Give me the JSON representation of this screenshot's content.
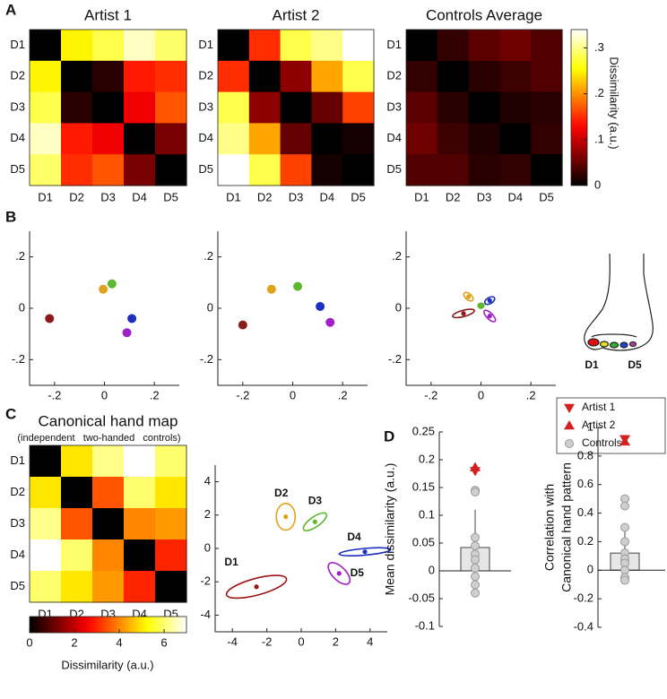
{
  "panel_labels": [
    "A",
    "B",
    "C",
    "D"
  ],
  "foot": {
    "labels": [
      "D1",
      "D5"
    ]
  },
  "chart_data": [
    {
      "type": "heatmap",
      "title": "Artist 1",
      "categories": [
        "D1",
        "D2",
        "D3",
        "D4",
        "D5"
      ],
      "colormap": "hot",
      "clim": [
        0,
        0.34
      ],
      "values": [
        [
          0,
          0.25,
          0.28,
          0.32,
          0.29
        ],
        [
          0.25,
          0,
          0.02,
          0.14,
          0.15
        ],
        [
          0.28,
          0.02,
          0,
          0.12,
          0.17
        ],
        [
          0.32,
          0.14,
          0.12,
          0,
          0.06
        ],
        [
          0.29,
          0.15,
          0.17,
          0.06,
          0
        ]
      ]
    },
    {
      "type": "heatmap",
      "title": "Artist 2",
      "categories": [
        "D1",
        "D2",
        "D3",
        "D4",
        "D5"
      ],
      "colormap": "hot",
      "clim": [
        0,
        0.34
      ],
      "values": [
        [
          0,
          0.15,
          0.28,
          0.3,
          0.34
        ],
        [
          0.15,
          0,
          0.07,
          0.21,
          0.28
        ],
        [
          0.28,
          0.07,
          0,
          0.05,
          0.16
        ],
        [
          0.3,
          0.21,
          0.05,
          0,
          0.01
        ],
        [
          0.34,
          0.28,
          0.16,
          0.01,
          0
        ]
      ]
    },
    {
      "type": "heatmap",
      "title": "Controls Average",
      "categories": [
        "D1",
        "D2",
        "D3",
        "D4",
        "D5"
      ],
      "colormap": "hot",
      "clim": [
        0,
        0.34
      ],
      "values": [
        [
          0,
          0.025,
          0.045,
          0.055,
          0.04
        ],
        [
          0.025,
          0,
          0.02,
          0.03,
          0.04
        ],
        [
          0.045,
          0.02,
          0,
          0.015,
          0.02
        ],
        [
          0.055,
          0.03,
          0.015,
          0,
          0.025
        ],
        [
          0.04,
          0.04,
          0.02,
          0.025,
          0
        ]
      ],
      "colorbar": {
        "label": "Dissimilarity (a.u.)",
        "ticks": [
          0,
          {
            "value": 0.1,
            "label": ".1"
          },
          {
            "value": 0.2,
            "label": ".2"
          },
          {
            "value": 0.3,
            "label": ".3"
          }
        ]
      }
    },
    {
      "type": "scatter",
      "x": [
        -0.22,
        -0.005,
        0.03,
        0.11,
        0.09
      ],
      "y": [
        -0.04,
        0.074,
        0.095,
        -0.04,
        -0.095
      ],
      "colors": [
        "#8b1a1a",
        "#e0a21a",
        "#5cb82e",
        "#1c2fbf",
        "#a020c8"
      ],
      "xlim": [
        -0.3,
        0.3
      ],
      "ylim": [
        -0.3,
        0.3
      ],
      "xticks": [
        {
          "value": -0.2,
          "label": "-.2"
        },
        0,
        {
          "value": 0.2,
          "label": ".2"
        }
      ],
      "yticks": [
        {
          "value": -0.2,
          "label": "-.2"
        },
        0,
        {
          "value": 0.2,
          "label": ".2"
        }
      ]
    },
    {
      "type": "scatter",
      "x": [
        -0.2,
        -0.085,
        0.02,
        0.11,
        0.15
      ],
      "y": [
        -0.065,
        0.074,
        0.085,
        0.007,
        -0.055
      ],
      "colors": [
        "#8b1a1a",
        "#e0a21a",
        "#5cb82e",
        "#1c2fbf",
        "#a020c8"
      ],
      "xlim": [
        -0.3,
        0.3
      ],
      "ylim": [
        -0.3,
        0.3
      ],
      "xticks": [
        {
          "value": -0.2,
          "label": "-.2"
        },
        0,
        {
          "value": 0.2,
          "label": ".2"
        }
      ],
      "yticks": [
        {
          "value": -0.2,
          "label": "-.2"
        },
        0,
        {
          "value": 0.2,
          "label": ".2"
        }
      ]
    },
    {
      "type": "scatter",
      "x": [
        -0.07,
        -0.05,
        0.0,
        0.035,
        0.035
      ],
      "y": [
        -0.02,
        0.045,
        0.01,
        0.03,
        -0.03
      ],
      "colors": [
        "#8b1a1a",
        "#e0a21a",
        "#5cb82e",
        "#1c2fbf",
        "#a020c8"
      ],
      "xlim": [
        -0.3,
        0.3
      ],
      "ylim": [
        -0.3,
        0.3
      ],
      "ellipse_rx": [
        0.045,
        0.022,
        0.012,
        0.022,
        0.03
      ],
      "ellipse_ry": [
        0.012,
        0.012,
        0.01,
        0.012,
        0.012
      ],
      "ellipse_angle": [
        15,
        -40,
        0,
        30,
        -45
      ],
      "xticks": [
        {
          "value": -0.2,
          "label": "-.2"
        },
        0,
        {
          "value": 0.2,
          "label": ".2"
        }
      ],
      "yticks": [
        {
          "value": -0.2,
          "label": "-.2"
        },
        0,
        {
          "value": 0.2,
          "label": ".2"
        }
      ]
    },
    {
      "type": "heatmap",
      "title": "Canonical hand map",
      "subtitle": "(independent   two-handed   controls)",
      "categories": [
        "D1",
        "D2",
        "D3",
        "D4",
        "D5"
      ],
      "colormap": "hot",
      "clim": [
        0,
        7
      ],
      "values": [
        [
          0,
          5,
          6.2,
          7,
          6
        ],
        [
          5,
          0,
          3.5,
          6,
          5
        ],
        [
          6.2,
          3.5,
          0,
          4,
          4.2
        ],
        [
          7,
          6,
          4,
          0,
          3
        ],
        [
          6,
          5,
          4.2,
          3,
          0
        ]
      ],
      "colorbar": {
        "label": "Dissimilarity (a.u.)",
        "ticks": [
          0,
          2,
          4,
          6
        ]
      }
    },
    {
      "type": "scatter",
      "labels": [
        "D1",
        "D2",
        "D3",
        "D4",
        "D5"
      ],
      "x": [
        -2.6,
        -0.9,
        0.8,
        3.7,
        2.2
      ],
      "y": [
        -2.3,
        1.9,
        1.6,
        -0.2,
        -1.5
      ],
      "colors": [
        "#9b1515",
        "#e0a21a",
        "#5cb82e",
        "#1c2fbf",
        "#a020c8"
      ],
      "xlim": [
        -5,
        5
      ],
      "ylim": [
        -5,
        5
      ],
      "ellipse_rx": [
        1.8,
        0.55,
        0.8,
        1.5,
        0.8
      ],
      "ellipse_ry": [
        0.5,
        0.8,
        0.3,
        0.2,
        0.4
      ],
      "ellipse_angle": [
        15,
        0,
        35,
        5,
        -45
      ],
      "xticks": [
        -4,
        -2,
        0,
        2,
        4
      ],
      "yticks": [
        -4,
        -2,
        0,
        2,
        4
      ]
    },
    {
      "type": "bar",
      "ylabel": [
        "Mean dissimilarity (a.u.)"
      ],
      "values": [
        0.042
      ],
      "error": [
        0.068
      ],
      "color": "#e6e6e6",
      "ylim": [
        -0.1,
        0.25
      ],
      "yticks": [
        -0.1,
        -0.05,
        0,
        0.05,
        0.1,
        0.15,
        0.2,
        0.25
      ],
      "legend": "upper right",
      "series": [
        {
          "name": "Artist 1",
          "color": "#d42020",
          "marker": "triangle-down",
          "values": [
            0.18
          ]
        },
        {
          "name": "Artist 2",
          "color": "#d42020",
          "marker": "triangle-up",
          "values": [
            0.186
          ]
        },
        {
          "name": "Controls",
          "color": "#cfcfcf",
          "marker": "circle",
          "values": [
            0.145,
            0.142,
            0.06,
            0.045,
            0.03,
            0.02,
            0.005,
            -0.01,
            -0.025,
            -0.04
          ]
        }
      ]
    },
    {
      "type": "bar",
      "ylabel": [
        "Correlation with",
        "Canonical hand pattern"
      ],
      "values": [
        0.12
      ],
      "error": [
        0.19
      ],
      "color": "#e6e6e6",
      "ylim": [
        -0.4,
        1
      ],
      "yticks": [
        -0.4,
        -0.2,
        0,
        0.2,
        0.4,
        0.6,
        0.8,
        1
      ],
      "series": [
        {
          "color": "#d42020",
          "marker": "triangle-down",
          "values": [
            0.92
          ]
        },
        {
          "color": "#d42020",
          "marker": "triangle-up",
          "values": [
            0.9
          ]
        },
        {
          "color": "#cfcfcf",
          "marker": "circle",
          "values": [
            0.5,
            0.45,
            0.3,
            0.2,
            0.12,
            0.08,
            0.05,
            0.0,
            -0.05,
            -0.07
          ]
        }
      ]
    }
  ]
}
